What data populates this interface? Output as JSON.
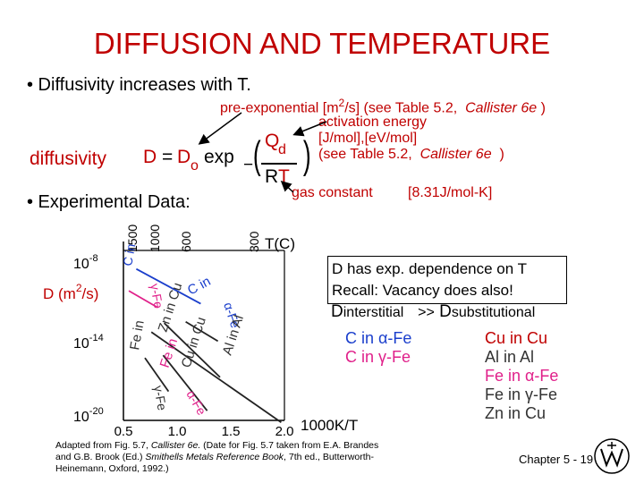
{
  "slide": {
    "title": "DIFFUSION AND TEMPERATURE",
    "bullet1": "• Diffusivity increases with T.",
    "bullet2": "• Experimental Data:",
    "chapter": "Chapter 5 - 19",
    "logo_icon": "university-seal-icon"
  },
  "equation": {
    "diffusivity_label": "diffusivity",
    "D_eq": "D",
    "equals": "=",
    "D0": "D",
    "D0_sub": "o",
    "exp": "exp",
    "minus": "−",
    "Q": "Q",
    "Q_sub": "d",
    "R": "R",
    "T": "T",
    "preexp_a": "pre-exponential [m",
    "preexp_sup": "2",
    "preexp_b": "/s] (see Table 5.2,",
    "preexp_ref": "Callister 6e",
    "preexp_close": ")",
    "act_line1": "activation energy",
    "act_line2": "[J/mol],[eV/mol]",
    "act_line3a": "(see Table 5.2,",
    "act_line3_ref": "Callister 6e",
    "act_line3_close": ")",
    "gas_label": "gas constant",
    "gas_value": "[8.31J/mol-K]"
  },
  "note": {
    "line1": "D has exp. dependence on T",
    "line2": "Recall:  Vacancy does also!",
    "dint_D": "D",
    "dint_sub": "interstitial",
    "gtgt": ">>",
    "dsub_D": "D",
    "dsub_sub": "substitutional"
  },
  "legend_left": [
    {
      "text": "C in α-Fe",
      "color": "#1a3ecc"
    },
    {
      "text": "C in γ-Fe",
      "color": "#e0208a"
    }
  ],
  "legend_right": [
    {
      "text": "Cu in Cu",
      "color": "#c00000"
    },
    {
      "text": "Al in Al",
      "color": "#333333"
    },
    {
      "text": "Fe in α-Fe",
      "color": "#e0208a"
    },
    {
      "text": "Fe in γ-Fe",
      "color": "#333333"
    },
    {
      "text": "Zn in Cu",
      "color": "#333333"
    }
  ],
  "caption": {
    "part1": "Adapted from Fig. 5.7, ",
    "ital1": "Callister 6e.",
    "part2": "  (Date for Fig. 5.7 taken from E.A. Brandes and G.B. Brook (Ed.) ",
    "ital2": "Smithells Metals Reference Book",
    "part3": ", 7th ed., Butterworth-Heinemann, Oxford, 1992.)"
  },
  "chart_data": {
    "type": "line",
    "log_y": true,
    "xlabel": "1000K/T",
    "ylabel": "D (m²/s)",
    "top_axis_label": "T(C)",
    "xlim": [
      0.5,
      2.0
    ],
    "x_ticks": [
      "0.5",
      "1.0",
      "1.5",
      "2.0"
    ],
    "y_ticks": [
      {
        "exponent": -8,
        "text": "10",
        "sup": "-8"
      },
      {
        "exponent": -14,
        "text": "10",
        "sup": "-14"
      },
      {
        "exponent": -20,
        "text": "10",
        "sup": "-20"
      }
    ],
    "top_ticks": [
      "1500",
      "1000",
      "600",
      "300"
    ],
    "series": [
      {
        "name": "C in α-Fe",
        "color": "#1a3ecc",
        "x": [
          0.62,
          1.22
        ],
        "y": [
          -8.6,
          -11.3
        ]
      },
      {
        "name": "C in γ-Fe",
        "color": "#e0208a",
        "x": [
          0.55,
          0.82
        ],
        "y": [
          -10.3,
          -11.6
        ]
      },
      {
        "name": "Al in Al",
        "color": "#222222",
        "x": [
          1.08,
          1.38
        ],
        "y": [
          -12.7,
          -14.2
        ]
      },
      {
        "name": "Zn in Cu",
        "color": "#222222",
        "x": [
          0.88,
          1.4
        ],
        "y": [
          -12.8,
          -17.0
        ]
      },
      {
        "name": "Cu in Cu",
        "color": "#222222",
        "x": [
          0.76,
          1.97
        ],
        "y": [
          -13.5,
          -20.5
        ]
      },
      {
        "name": "Fe in α-Fe",
        "color": "#222222",
        "x": [
          0.87,
          1.28
        ],
        "y": [
          -15.3,
          -19.6
        ]
      },
      {
        "name": "Fe in γ-Fe",
        "color": "#222222",
        "x": [
          0.7,
          0.92
        ],
        "y": [
          -15.5,
          -18.1
        ]
      }
    ],
    "line_labels": [
      {
        "text": "C in",
        "color": "#1a3ecc"
      },
      {
        "text": "α-Fe",
        "color": "#1a3ecc"
      },
      {
        "text": "C in",
        "color": "#e0208a"
      },
      {
        "text": "γ-Fe",
        "color": "#e0208a"
      },
      {
        "text": "Al in Al",
        "color": "#333333"
      },
      {
        "text": "Zn in Cu",
        "color": "#333333"
      },
      {
        "text": "Cu in Cu",
        "color": "#333333"
      },
      {
        "text": "Fe in",
        "color": "#333333"
      },
      {
        "text": "γ-Fe",
        "color": "#333333"
      },
      {
        "text": "Fe in",
        "color": "#e0208a"
      },
      {
        "text": "α-Fe",
        "color": "#e0208a"
      }
    ]
  }
}
